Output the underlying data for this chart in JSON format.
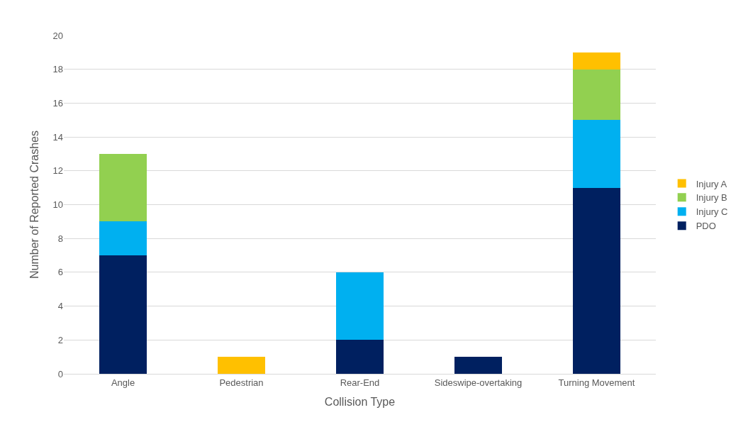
{
  "chart_data": {
    "type": "bar",
    "stacked": true,
    "xlabel": "Collision Type",
    "ylabel": "Number of Reported Crashes",
    "categories": [
      "Angle",
      "Pedestrian",
      "Rear-End",
      "Sideswipe-overtaking",
      "Turning Movement"
    ],
    "series": [
      {
        "name": "PDO",
        "color": "#002060",
        "values": [
          7,
          0,
          2,
          1,
          11
        ]
      },
      {
        "name": "Injury C",
        "color": "#00b0f0",
        "values": [
          2,
          0,
          4,
          0,
          4
        ]
      },
      {
        "name": "Injury B",
        "color": "#92d050",
        "values": [
          4,
          0,
          0,
          0,
          3
        ]
      },
      {
        "name": "Injury A",
        "color": "#ffc000",
        "values": [
          0,
          1,
          0,
          0,
          1
        ]
      }
    ],
    "ylim": [
      0,
      20
    ],
    "yticks": [
      0,
      2,
      4,
      6,
      8,
      10,
      12,
      14,
      16,
      18,
      20
    ],
    "grid": "y",
    "legend": "right"
  }
}
